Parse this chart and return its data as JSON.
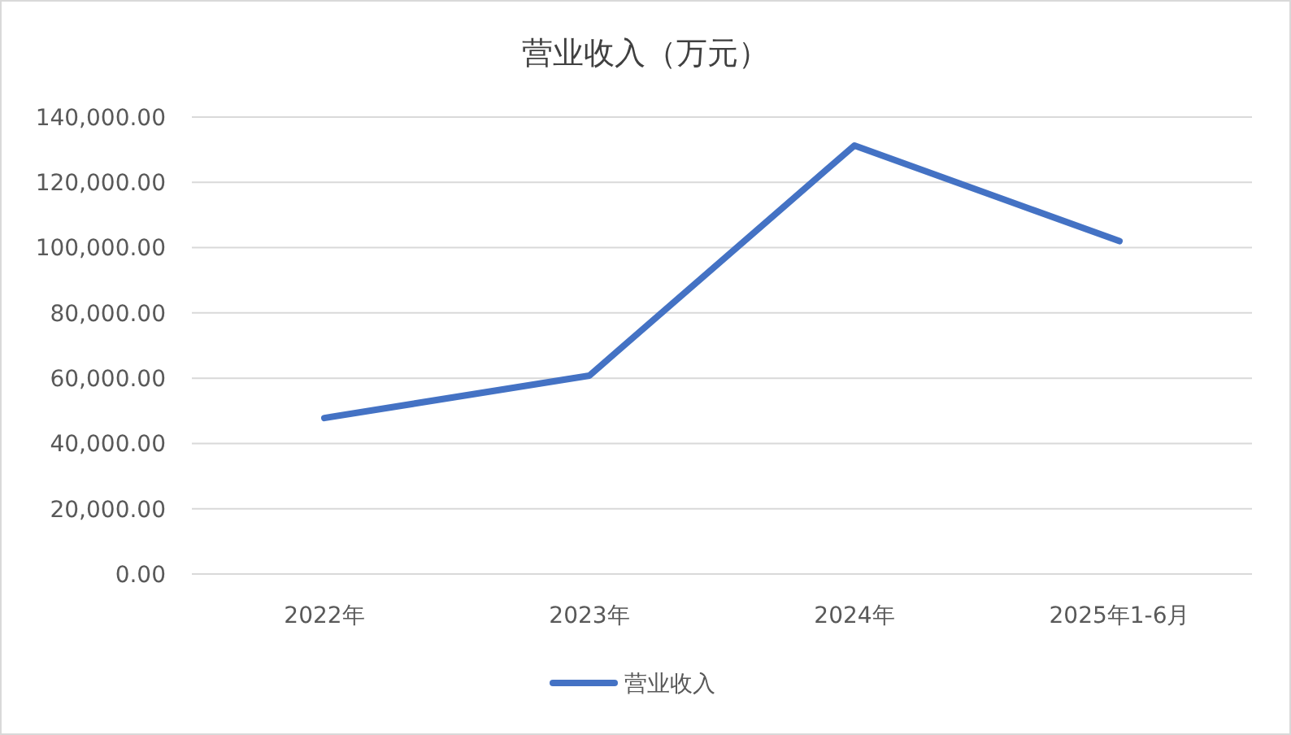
{
  "chart_data": {
    "type": "line",
    "title": "营业收入（万元）",
    "categories": [
      "2022年",
      "2023年",
      "2024年",
      "2025年1-6月"
    ],
    "series": [
      {
        "name": "营业收入",
        "color": "#4472c4",
        "values": [
          47800,
          60800,
          131300,
          102000
        ]
      }
    ],
    "ylim": [
      0,
      140000
    ],
    "yticks": [
      {
        "value": 0,
        "label": "0.00"
      },
      {
        "value": 20000,
        "label": "20,000.00"
      },
      {
        "value": 40000,
        "label": "40,000.00"
      },
      {
        "value": 60000,
        "label": "60,000.00"
      },
      {
        "value": 80000,
        "label": "80,000.00"
      },
      {
        "value": 100000,
        "label": "100,000.00"
      },
      {
        "value": 120000,
        "label": "120,000.00"
      },
      {
        "value": 140000,
        "label": "140,000.00"
      }
    ],
    "grid": "y",
    "legend": "bottom",
    "marker": "none",
    "line_style": "solid"
  }
}
